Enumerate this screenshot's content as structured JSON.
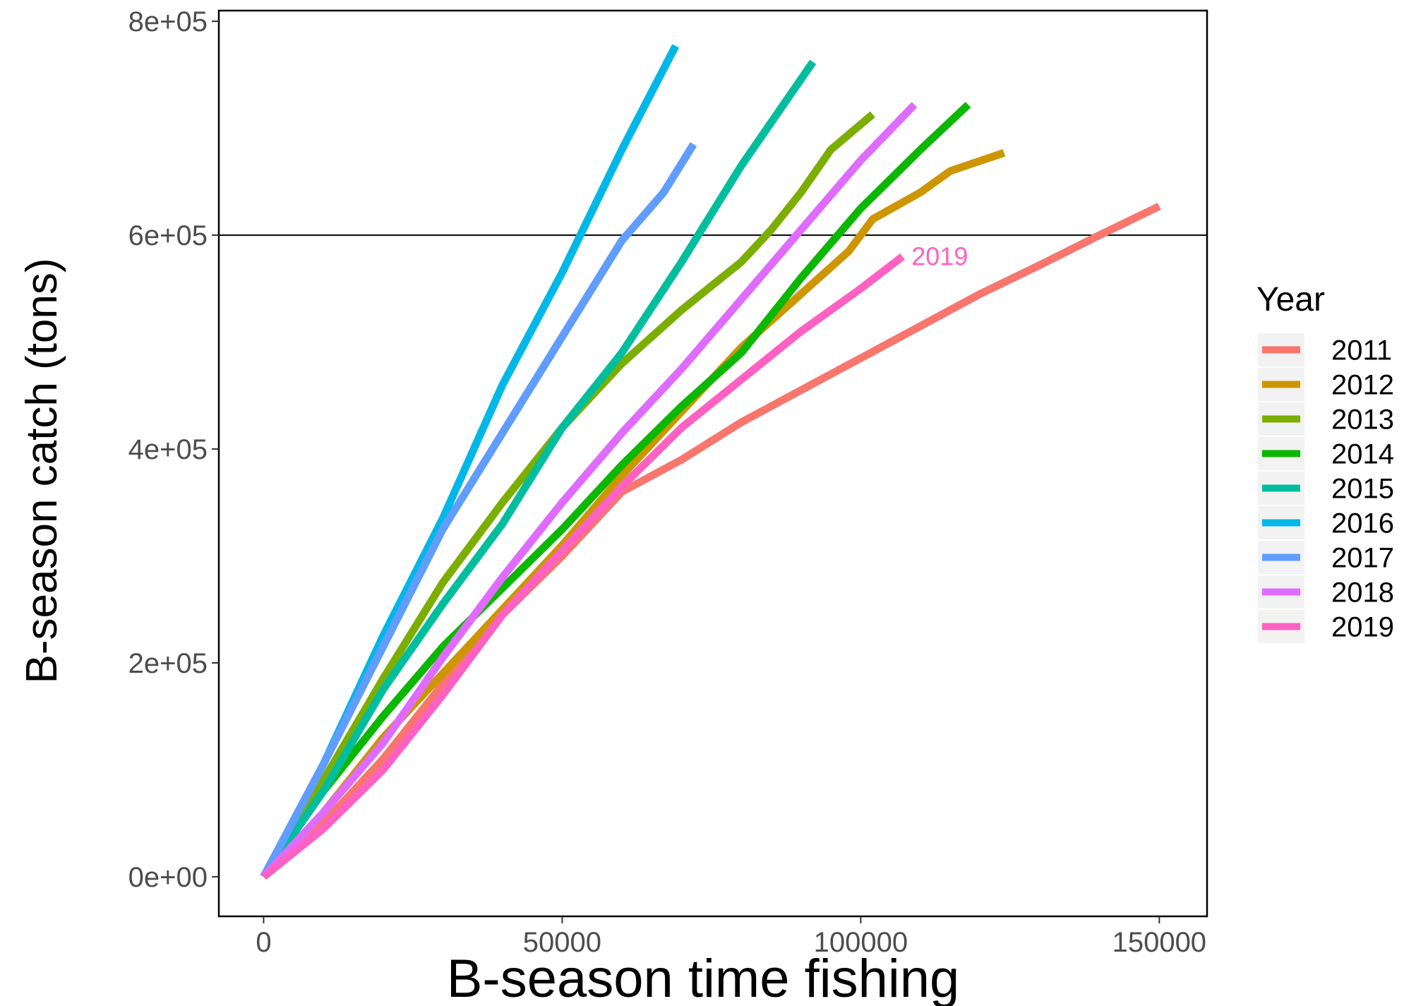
{
  "chart_data": {
    "type": "line",
    "xlabel": "B-season time fishing",
    "ylabel": "B-season catch (tons)",
    "xlim": [
      -7500,
      158000
    ],
    "ylim": [
      -37000,
      810000
    ],
    "x_ticks": [
      {
        "value": 0,
        "label": "0"
      },
      {
        "value": 50000,
        "label": "50000"
      },
      {
        "value": 100000,
        "label": "100000"
      },
      {
        "value": 150000,
        "label": "150000"
      }
    ],
    "y_ticks": [
      {
        "value": 0,
        "label": "0e+00"
      },
      {
        "value": 200000,
        "label": "2e+05"
      },
      {
        "value": 400000,
        "label": "4e+05"
      },
      {
        "value": 600000,
        "label": "6e+05"
      },
      {
        "value": 800000,
        "label": "8e+05"
      }
    ],
    "hline": 600000,
    "grid": false,
    "legend": {
      "title": "Year",
      "placement": "right"
    },
    "annotation": {
      "text": "2019",
      "x": 108500,
      "y": 572000,
      "color": "#FF61C3"
    },
    "series": [
      {
        "name": "2011",
        "color": "#F8766D",
        "points": [
          [
            0,
            0
          ],
          [
            10000,
            50000
          ],
          [
            20000,
            110000
          ],
          [
            30000,
            180000
          ],
          [
            40000,
            245000
          ],
          [
            50000,
            300000
          ],
          [
            60000,
            360000
          ],
          [
            70000,
            390000
          ],
          [
            80000,
            425000
          ],
          [
            90000,
            455000
          ],
          [
            100000,
            485000
          ],
          [
            110000,
            515000
          ],
          [
            120000,
            545000
          ],
          [
            130000,
            572000
          ],
          [
            140000,
            600000
          ],
          [
            150000,
            627000
          ]
        ]
      },
      {
        "name": "2012",
        "color": "#CD9600",
        "points": [
          [
            0,
            0
          ],
          [
            10000,
            60000
          ],
          [
            20000,
            130000
          ],
          [
            30000,
            190000
          ],
          [
            40000,
            250000
          ],
          [
            50000,
            310000
          ],
          [
            60000,
            375000
          ],
          [
            70000,
            435000
          ],
          [
            80000,
            495000
          ],
          [
            90000,
            545000
          ],
          [
            98000,
            585000
          ],
          [
            102000,
            615000
          ],
          [
            110000,
            640000
          ],
          [
            115000,
            660000
          ],
          [
            124000,
            677000
          ]
        ]
      },
      {
        "name": "2013",
        "color": "#7CAE00",
        "points": [
          [
            0,
            0
          ],
          [
            10000,
            90000
          ],
          [
            20000,
            185000
          ],
          [
            30000,
            275000
          ],
          [
            40000,
            350000
          ],
          [
            50000,
            420000
          ],
          [
            60000,
            480000
          ],
          [
            70000,
            530000
          ],
          [
            80000,
            575000
          ],
          [
            85000,
            605000
          ],
          [
            90000,
            640000
          ],
          [
            95000,
            680000
          ],
          [
            102000,
            713000
          ]
        ]
      },
      {
        "name": "2014",
        "color": "#0CB702",
        "points": [
          [
            0,
            0
          ],
          [
            10000,
            80000
          ],
          [
            20000,
            150000
          ],
          [
            30000,
            215000
          ],
          [
            40000,
            270000
          ],
          [
            50000,
            325000
          ],
          [
            60000,
            385000
          ],
          [
            70000,
            440000
          ],
          [
            80000,
            490000
          ],
          [
            90000,
            560000
          ],
          [
            100000,
            625000
          ],
          [
            110000,
            680000
          ],
          [
            118000,
            722000
          ]
        ]
      },
      {
        "name": "2015",
        "color": "#00BE9D",
        "points": [
          [
            0,
            0
          ],
          [
            10000,
            80000
          ],
          [
            20000,
            175000
          ],
          [
            30000,
            255000
          ],
          [
            40000,
            330000
          ],
          [
            50000,
            420000
          ],
          [
            60000,
            490000
          ],
          [
            70000,
            575000
          ],
          [
            80000,
            665000
          ],
          [
            92000,
            762000
          ]
        ]
      },
      {
        "name": "2016",
        "color": "#00B8E7",
        "points": [
          [
            0,
            0
          ],
          [
            10000,
            105000
          ],
          [
            20000,
            225000
          ],
          [
            30000,
            335000
          ],
          [
            40000,
            460000
          ],
          [
            50000,
            565000
          ],
          [
            60000,
            680000
          ],
          [
            69000,
            777000
          ]
        ]
      },
      {
        "name": "2017",
        "color": "#619CFF",
        "points": [
          [
            0,
            0
          ],
          [
            10000,
            105000
          ],
          [
            20000,
            215000
          ],
          [
            30000,
            325000
          ],
          [
            40000,
            415000
          ],
          [
            50000,
            505000
          ],
          [
            60000,
            595000
          ],
          [
            67000,
            640000
          ],
          [
            72000,
            685000
          ]
        ]
      },
      {
        "name": "2018",
        "color": "#E06BFF",
        "points": [
          [
            0,
            0
          ],
          [
            10000,
            60000
          ],
          [
            20000,
            125000
          ],
          [
            30000,
            205000
          ],
          [
            40000,
            280000
          ],
          [
            50000,
            350000
          ],
          [
            60000,
            415000
          ],
          [
            70000,
            475000
          ],
          [
            80000,
            540000
          ],
          [
            90000,
            605000
          ],
          [
            100000,
            670000
          ],
          [
            109000,
            722000
          ]
        ]
      },
      {
        "name": "2019",
        "color": "#FF61C3",
        "points": [
          [
            0,
            0
          ],
          [
            10000,
            45000
          ],
          [
            20000,
            100000
          ],
          [
            30000,
            170000
          ],
          [
            40000,
            245000
          ],
          [
            50000,
            305000
          ],
          [
            60000,
            365000
          ],
          [
            70000,
            420000
          ],
          [
            80000,
            465000
          ],
          [
            90000,
            510000
          ],
          [
            100000,
            550000
          ],
          [
            107000,
            580000
          ]
        ]
      }
    ]
  }
}
